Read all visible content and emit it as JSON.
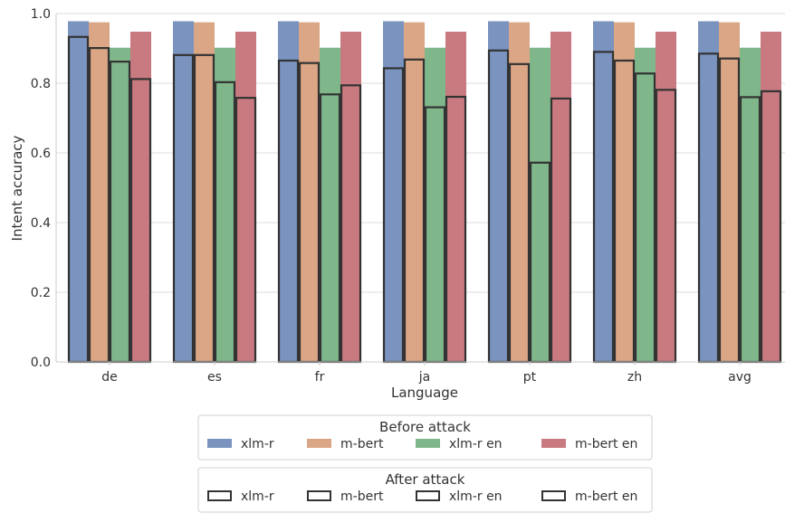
{
  "chart_data": {
    "type": "bar",
    "xlabel": "Language",
    "ylabel": "Intent accuracy",
    "ylim": [
      0,
      1.0
    ],
    "yticks": [
      0.0,
      0.2,
      0.4,
      0.6,
      0.8,
      1.0
    ],
    "ytick_labels": [
      "0.0",
      "0.2",
      "0.4",
      "0.6",
      "0.8",
      "1.0"
    ],
    "grid": true,
    "legend_placement": "below",
    "categories": [
      "de",
      "es",
      "fr",
      "ja",
      "pt",
      "zh",
      "avg"
    ],
    "before_attack": {
      "title": "Before attack",
      "series": [
        {
          "name": "xlm-r",
          "color": "#7a93bf",
          "values": [
            0.978,
            0.978,
            0.978,
            0.978,
            0.978,
            0.978,
            0.978
          ]
        },
        {
          "name": "m-bert",
          "color": "#dba685",
          "values": [
            0.975,
            0.975,
            0.975,
            0.975,
            0.975,
            0.975,
            0.975
          ]
        },
        {
          "name": "xlm-r en",
          "color": "#7fb78b",
          "values": [
            0.902,
            0.902,
            0.902,
            0.902,
            0.902,
            0.902,
            0.902
          ]
        },
        {
          "name": "m-bert en",
          "color": "#c97a80",
          "values": [
            0.948,
            0.948,
            0.948,
            0.948,
            0.948,
            0.948,
            0.948
          ]
        }
      ]
    },
    "after_attack": {
      "title": "After attack",
      "series": [
        {
          "name": "xlm-r",
          "values": [
            0.933,
            0.881,
            0.865,
            0.843,
            0.894,
            0.89,
            0.885
          ]
        },
        {
          "name": "m-bert",
          "values": [
            0.901,
            0.881,
            0.858,
            0.868,
            0.855,
            0.865,
            0.871
          ]
        },
        {
          "name": "xlm-r en",
          "values": [
            0.862,
            0.803,
            0.768,
            0.731,
            0.572,
            0.828,
            0.76
          ]
        },
        {
          "name": "m-bert en",
          "values": [
            0.812,
            0.758,
            0.794,
            0.761,
            0.756,
            0.781,
            0.777
          ]
        }
      ]
    }
  }
}
